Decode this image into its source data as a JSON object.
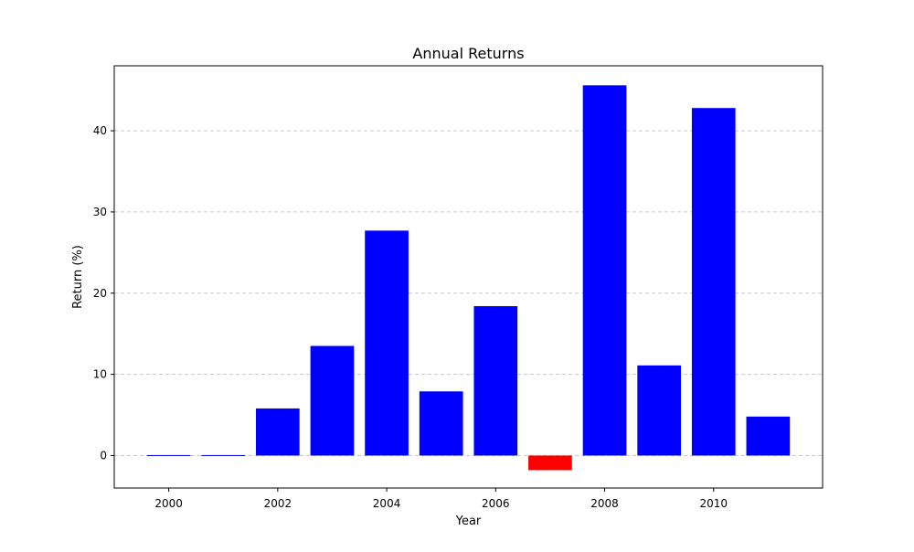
{
  "chart_data": {
    "type": "bar",
    "title": "Annual Returns",
    "xlabel": "Year",
    "ylabel": "Return (%)",
    "categories": [
      2000,
      2001,
      2002,
      2003,
      2004,
      2005,
      2006,
      2007,
      2008,
      2009,
      2010,
      2011
    ],
    "values": [
      0.0,
      0.0,
      5.8,
      13.5,
      27.7,
      7.9,
      18.4,
      -1.8,
      45.6,
      11.1,
      42.8,
      4.8
    ],
    "xlim": [
      1999,
      2012
    ],
    "ylim": [
      -4,
      48
    ],
    "xticks": [
      2000,
      2002,
      2004,
      2006,
      2008,
      2010
    ],
    "yticks": [
      0,
      10,
      20,
      30,
      40
    ],
    "grid": "y-dashed",
    "colors": {
      "positive": "#0000ff",
      "negative": "#ff0000",
      "grid": "#c8c8c8",
      "axis": "#000000"
    }
  }
}
